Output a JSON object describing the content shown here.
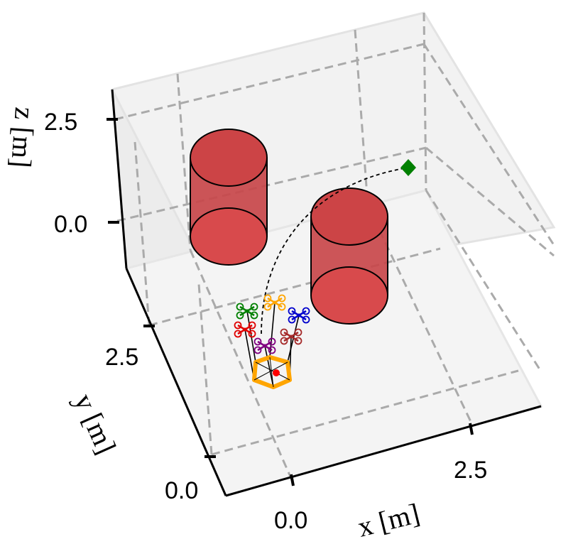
{
  "chart_data": {
    "type": "scatter",
    "projection": "3d",
    "title": "",
    "xlabel": "x [m]",
    "ylabel": "y [m]",
    "zlabel": "z [m]",
    "x_ticks": [
      "0.0",
      "2.5"
    ],
    "y_ticks": [
      "0.0",
      "2.5"
    ],
    "z_ticks": [
      "0.0",
      "2.5"
    ],
    "grid": true,
    "grid_style": "dashed",
    "obstacles": {
      "shape": "cylinder",
      "color": "#d9383a",
      "count": 2
    },
    "trajectory": {
      "style": "dashed",
      "color": "#000000"
    },
    "goal_marker": {
      "shape": "diamond",
      "color": "#008000"
    },
    "payload": {
      "shape": "hexagon",
      "color": "#ffa500",
      "center_color": "#ff0000"
    },
    "drones": [
      {
        "color": "#008000"
      },
      {
        "color": "#ffa500"
      },
      {
        "color": "#0000cc"
      },
      {
        "color": "#e00000"
      },
      {
        "color": "#800080"
      },
      {
        "color": "#a52a2a"
      }
    ]
  }
}
